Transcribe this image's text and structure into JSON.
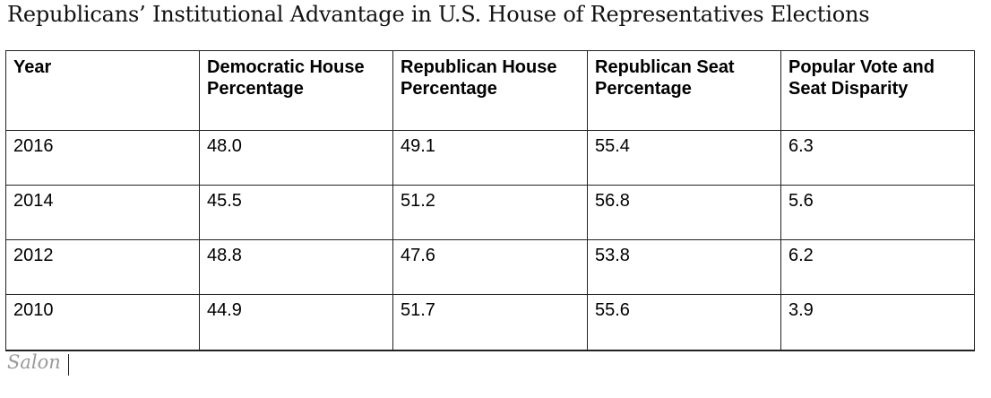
{
  "title": "Republicans’ Institutional Advantage in U.S. House of Representatives Elections",
  "columns": [
    "Year",
    "Democratic House Percentage",
    "Republican House Percentage",
    "Republican Seat Percentage",
    "Popular Vote and Seat Disparity"
  ],
  "rows": [
    [
      "2016",
      "48.0",
      "49.1",
      "55.4",
      "6.3"
    ],
    [
      "2014",
      "45.5",
      "51.2",
      "56.8",
      "5.6"
    ],
    [
      "2012",
      "48.8",
      "47.6",
      "53.8",
      "6.2"
    ],
    [
      "2010",
      "44.9",
      "51.7",
      "55.6",
      "3.9"
    ]
  ],
  "source": "Salon"
}
